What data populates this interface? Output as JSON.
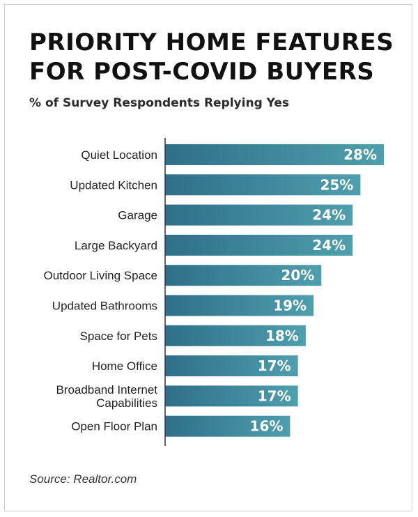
{
  "chart_data": {
    "type": "bar",
    "orientation": "horizontal",
    "title": [
      "PRIORITY HOME FEATURES",
      "FOR POST-COVID BUYERS"
    ],
    "subtitle": "% of Survey Respondents Replying Yes",
    "categories": [
      [
        "Quiet Location"
      ],
      [
        "Updated Kitchen"
      ],
      [
        "Garage"
      ],
      [
        "Large Backyard"
      ],
      [
        "Outdoor Living Space"
      ],
      [
        "Updated Bathrooms"
      ],
      [
        "Space for Pets"
      ],
      [
        "Home Office"
      ],
      [
        "Broadband Internet",
        "Capabilities"
      ],
      [
        "Open Floor Plan"
      ]
    ],
    "values": [
      28,
      25,
      24,
      24,
      20,
      19,
      18,
      17,
      17,
      16
    ],
    "value_labels": [
      "28%",
      "25%",
      "24%",
      "24%",
      "20%",
      "19%",
      "18%",
      "17%",
      "17%",
      "16%"
    ],
    "unit": "%",
    "xlim": [
      0,
      28
    ],
    "grid": false,
    "bar_color_start": "#2f6f8a",
    "bar_color_end": "#4e9fad",
    "axis_color": "#333333"
  },
  "source": "Source: Realtor.com"
}
